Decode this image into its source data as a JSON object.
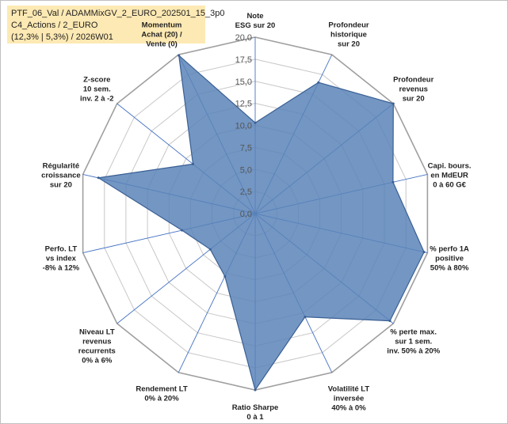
{
  "header": {
    "line1": "PTF_06_Val / ADAMMixGV_2_EURO_202501_15_3p0",
    "line2": "C4_Actions / 2_EURO",
    "line3": "(12,3% | 5,3%) / 2026W01"
  },
  "chart_data": {
    "type": "radar",
    "title": "",
    "rmin": 0,
    "rmax": 20,
    "ticks": [
      "0,0",
      "2,5",
      "5,0",
      "7,5",
      "10,0",
      "12,5",
      "15,0",
      "17,5",
      "20,0"
    ],
    "grid": true,
    "fill_color": "#5b84b8",
    "fill_opacity": 0.85,
    "edge_color": "#3a5f94",
    "grid_color": "#c8c8c8",
    "spoke_color": "#4472c4",
    "axes": [
      {
        "label": [
          "Note",
          "ESG sur 20"
        ],
        "value": 10.3
      },
      {
        "label": [
          "Profondeur",
          "historique",
          "sur 20"
        ],
        "value": 16.5
      },
      {
        "label": [
          "Profondeur",
          "revenus",
          "sur 20"
        ],
        "value": 20.0
      },
      {
        "label": [
          "Capi. bours.",
          "en MdEUR",
          "0 à 60 G€"
        ],
        "value": 16.0
      },
      {
        "label": [
          "% perfo 1A",
          "positive",
          "50% à 80%"
        ],
        "value": 19.6
      },
      {
        "label": [
          "% perte max.",
          "sur 1 sem.",
          "inv. 50% à 20%"
        ],
        "value": 19.5
      },
      {
        "label": [
          "Volatilité LT",
          "inversée",
          "40% à 0%"
        ],
        "value": 13.0
      },
      {
        "label": [
          "Ratio Sharpe",
          "0 à 1"
        ],
        "value": 20.0
      },
      {
        "label": [
          "Rendement LT",
          "0% à 20%"
        ],
        "value": 7.9
      },
      {
        "label": [
          "Niveau LT",
          "revenus",
          "recurrents",
          "0% à 6%"
        ],
        "value": 6.5
      },
      {
        "label": [
          "Perfo. LT",
          "vs index",
          "-8% à 12%"
        ],
        "value": 8.5
      },
      {
        "label": [
          "Régularité",
          "croissance",
          "sur 20"
        ],
        "value": 18.2
      },
      {
        "label": [
          "Z-score",
          "10 sem.",
          "inv. 2 à -2"
        ],
        "value": 9.0
      },
      {
        "label": [
          "Momentum",
          "Achat (20) /",
          "Vente (0)"
        ],
        "value": 19.9
      }
    ]
  }
}
